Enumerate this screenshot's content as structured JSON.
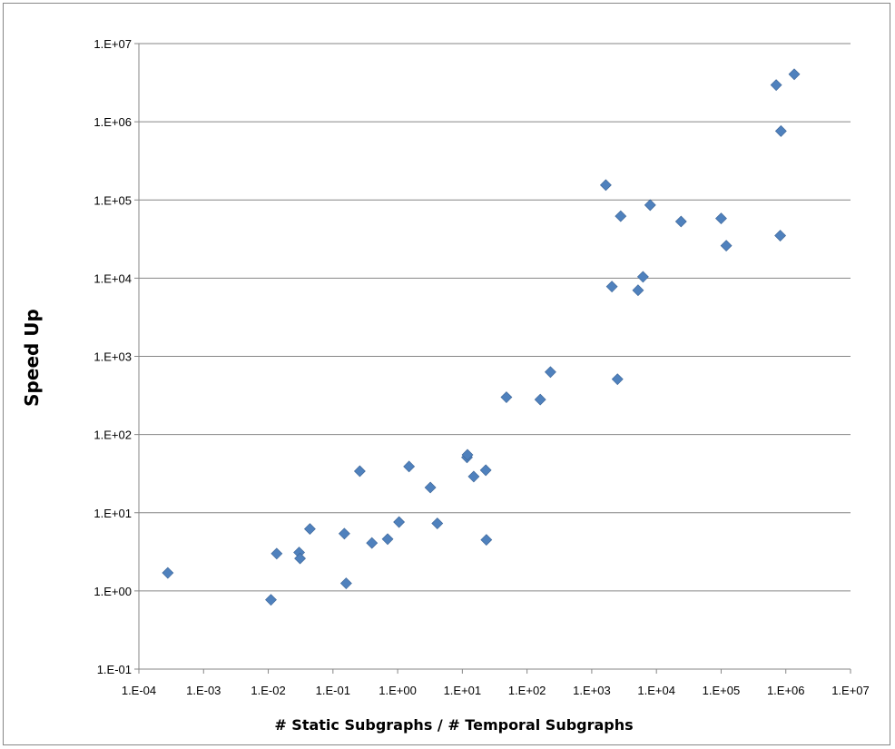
{
  "chart_data": {
    "type": "scatter",
    "title": "",
    "xlabel": "# Static Subgraphs / # Temporal Subgraphs",
    "ylabel": "Speed Up",
    "xscale": "log",
    "yscale": "log",
    "xlim": [
      0.0001,
      10000000
    ],
    "ylim": [
      0.1,
      10000000
    ],
    "x_tick_labels": [
      "1.E-04",
      "1.E-03",
      "1.E-02",
      "1.E-01",
      "1.E+00",
      "1.E+01",
      "1.E+02",
      "1.E+03",
      "1.E+04",
      "1.E+05",
      "1.E+06",
      "1.E+07"
    ],
    "y_tick_labels": [
      "1.E-01",
      "1.E+00",
      "1.E+01",
      "1.E+02",
      "1.E+03",
      "1.E+04",
      "1.E+05",
      "1.E+06",
      "1.E+07"
    ],
    "grid": "horizontal-major",
    "legend": "none",
    "marker": "diamond",
    "marker_color": "#4F81BD",
    "series": [
      {
        "points": [
          [
            0.00028,
            1.7
          ],
          [
            0.011,
            0.77
          ],
          [
            0.0135,
            3.0
          ],
          [
            0.03,
            3.1
          ],
          [
            0.031,
            2.6
          ],
          [
            0.044,
            6.2
          ],
          [
            0.15,
            5.4
          ],
          [
            0.16,
            1.25
          ],
          [
            0.26,
            34.0
          ],
          [
            0.4,
            4.1
          ],
          [
            0.7,
            4.6
          ],
          [
            1.05,
            7.6
          ],
          [
            1.5,
            39.0
          ],
          [
            3.2,
            21.0
          ],
          [
            4.1,
            7.3
          ],
          [
            11.8,
            51.0
          ],
          [
            12.0,
            55.0
          ],
          [
            15.0,
            29.0
          ],
          [
            23.0,
            35.0
          ],
          [
            23.5,
            4.5
          ],
          [
            48.0,
            300.0
          ],
          [
            160.0,
            280.0
          ],
          [
            230.0,
            630.0
          ],
          [
            1650.0,
            155000.0
          ],
          [
            2050.0,
            7800.0
          ],
          [
            2500.0,
            510.0
          ],
          [
            2800.0,
            62000.0
          ],
          [
            5200.0,
            7000.0
          ],
          [
            6200.0,
            10400.0
          ],
          [
            8000.0,
            86000.0
          ],
          [
            24000.0,
            53000.0
          ],
          [
            100000.0,
            58000.0
          ],
          [
            120000.0,
            26000.0
          ],
          [
            710000.0,
            2950000.0
          ],
          [
            820000.0,
            35000.0
          ],
          [
            840000.0,
            760000.0
          ],
          [
            1350000.0,
            4050000.0
          ]
        ]
      }
    ]
  }
}
